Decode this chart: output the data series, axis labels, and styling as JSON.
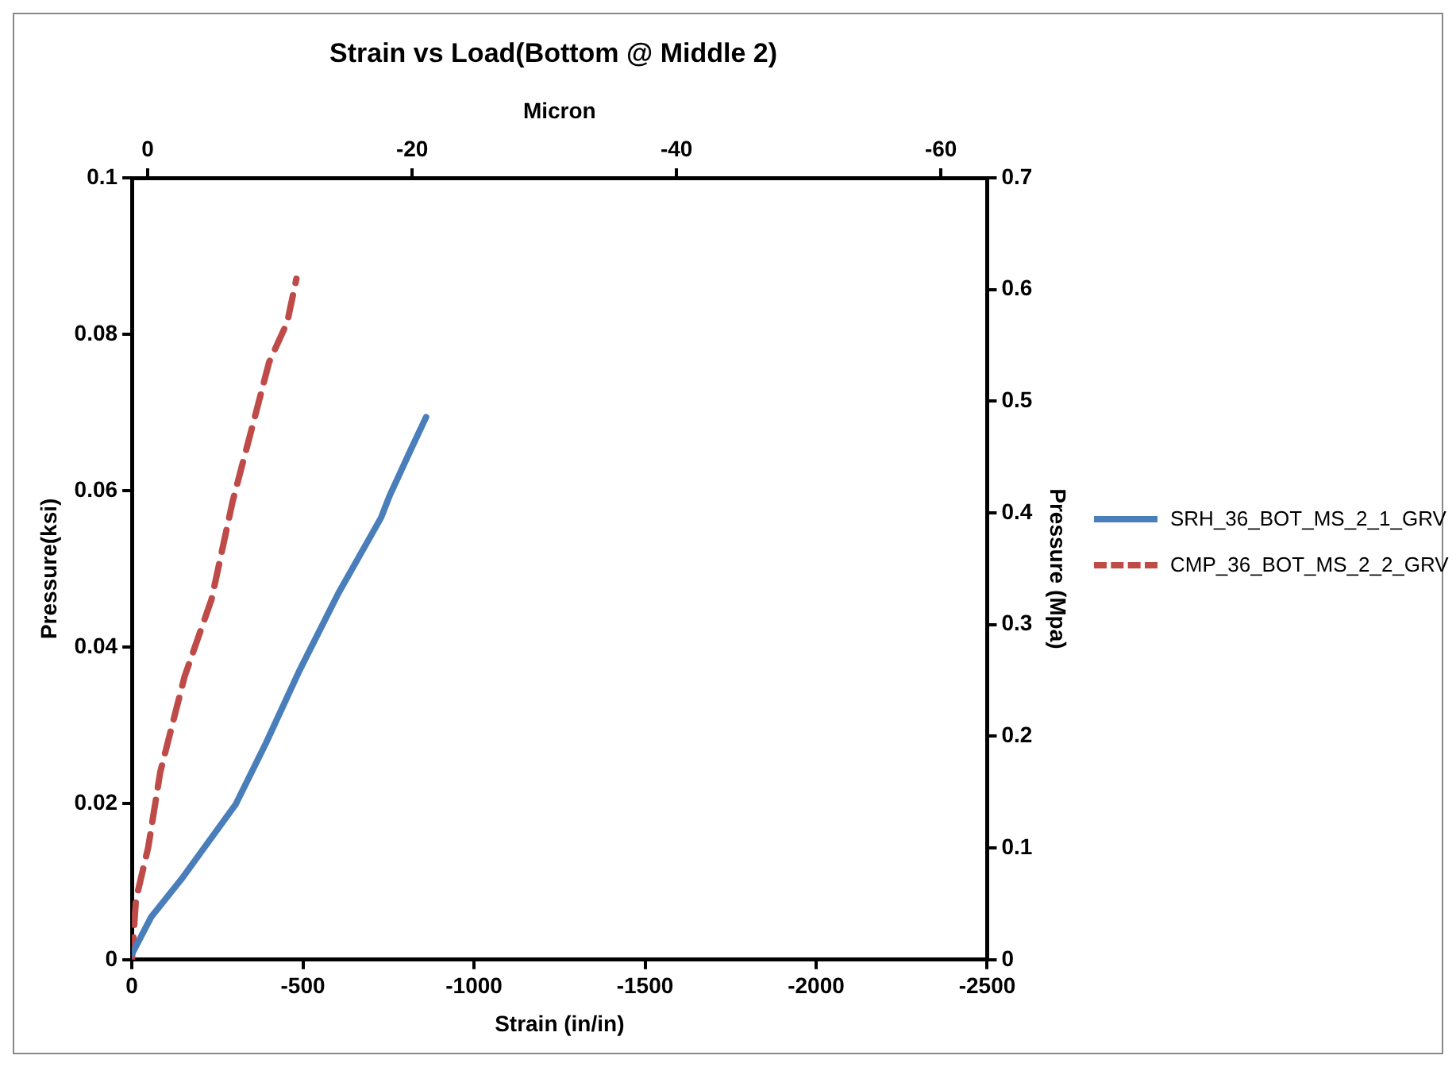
{
  "chart_data": {
    "type": "line",
    "title": "Strain vs Load(Bottom @ Middle 2)",
    "xlabel": "Strain (in/in)",
    "x2label": "Micron",
    "ylabel": "Pressure(ksi)",
    "y2label": "Pressure (Mpa)",
    "xlim": [
      0,
      -2500
    ],
    "xticks": [
      0,
      -500,
      -1000,
      -1500,
      -2000,
      -2500
    ],
    "x2lim": [
      1.2,
      -63.5
    ],
    "x2ticks": [
      0,
      -20,
      -40,
      -60
    ],
    "ylim": [
      0,
      0.1
    ],
    "yticks": [
      0,
      0.02,
      0.04,
      0.06,
      0.08,
      0.1
    ],
    "y2lim": [
      0,
      0.7
    ],
    "y2ticks": [
      0,
      0.1,
      0.2,
      0.3,
      0.4,
      0.5,
      0.6,
      0.7
    ],
    "grid": false,
    "legend": "right",
    "marker": "none",
    "series": [
      {
        "name": "SRH_36_BOT_MS_2_1_GRV",
        "color": "#4a7ebb",
        "line_style": "solid",
        "x": [
          0,
          -57,
          -145,
          -304,
          -392,
          -489,
          -604,
          -728,
          -754,
          -816,
          -860
        ],
        "values": [
          0.0007,
          0.0055,
          0.0103,
          0.0199,
          0.0277,
          0.0369,
          0.0469,
          0.0565,
          0.0594,
          0.0653,
          0.0694
        ]
      },
      {
        "name": "CMP_36_BOT_MS_2_2_GRV",
        "color": "#be4b48",
        "line_style": "dashed",
        "x": [
          0,
          -12,
          -48,
          -83,
          -154,
          -233,
          -295,
          -357,
          -401,
          -454,
          -481
        ],
        "values": [
          0,
          0.0077,
          0.0144,
          0.024,
          0.0362,
          0.0461,
          0.0587,
          0.069,
          0.0764,
          0.0815,
          0.0871
        ]
      }
    ]
  }
}
